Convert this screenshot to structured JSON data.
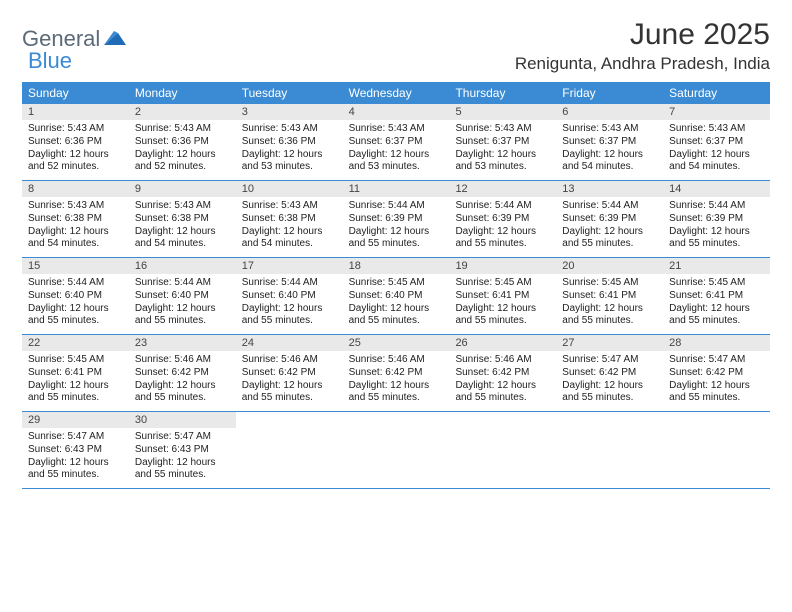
{
  "logo": {
    "text1": "General",
    "text2": "Blue"
  },
  "title": "June 2025",
  "location": "Renigunta, Andhra Pradesh, India",
  "dayHeaders": [
    "Sunday",
    "Monday",
    "Tuesday",
    "Wednesday",
    "Thursday",
    "Friday",
    "Saturday"
  ],
  "colors": {
    "headerBar": "#3b8bd4",
    "dayNumBg": "#e9e9e9",
    "weekBorder": "#3b8bd4",
    "logoGray": "#5c6a78",
    "logoBlue": "#3b8bd4",
    "text": "#222222",
    "background": "#ffffff"
  },
  "typography": {
    "titleSize": 30,
    "locationSize": 17,
    "dayHeaderSize": 12,
    "dayNumSize": 11,
    "bodySize": 10
  },
  "layout": {
    "columns": 7,
    "rows": 5,
    "cellMinHeight": 76
  },
  "weeks": [
    [
      {
        "n": "1",
        "sr": "Sunrise: 5:43 AM",
        "ss": "Sunset: 6:36 PM",
        "dl": "Daylight: 12 hours and 52 minutes."
      },
      {
        "n": "2",
        "sr": "Sunrise: 5:43 AM",
        "ss": "Sunset: 6:36 PM",
        "dl": "Daylight: 12 hours and 52 minutes."
      },
      {
        "n": "3",
        "sr": "Sunrise: 5:43 AM",
        "ss": "Sunset: 6:36 PM",
        "dl": "Daylight: 12 hours and 53 minutes."
      },
      {
        "n": "4",
        "sr": "Sunrise: 5:43 AM",
        "ss": "Sunset: 6:37 PM",
        "dl": "Daylight: 12 hours and 53 minutes."
      },
      {
        "n": "5",
        "sr": "Sunrise: 5:43 AM",
        "ss": "Sunset: 6:37 PM",
        "dl": "Daylight: 12 hours and 53 minutes."
      },
      {
        "n": "6",
        "sr": "Sunrise: 5:43 AM",
        "ss": "Sunset: 6:37 PM",
        "dl": "Daylight: 12 hours and 54 minutes."
      },
      {
        "n": "7",
        "sr": "Sunrise: 5:43 AM",
        "ss": "Sunset: 6:37 PM",
        "dl": "Daylight: 12 hours and 54 minutes."
      }
    ],
    [
      {
        "n": "8",
        "sr": "Sunrise: 5:43 AM",
        "ss": "Sunset: 6:38 PM",
        "dl": "Daylight: 12 hours and 54 minutes."
      },
      {
        "n": "9",
        "sr": "Sunrise: 5:43 AM",
        "ss": "Sunset: 6:38 PM",
        "dl": "Daylight: 12 hours and 54 minutes."
      },
      {
        "n": "10",
        "sr": "Sunrise: 5:43 AM",
        "ss": "Sunset: 6:38 PM",
        "dl": "Daylight: 12 hours and 54 minutes."
      },
      {
        "n": "11",
        "sr": "Sunrise: 5:44 AM",
        "ss": "Sunset: 6:39 PM",
        "dl": "Daylight: 12 hours and 55 minutes."
      },
      {
        "n": "12",
        "sr": "Sunrise: 5:44 AM",
        "ss": "Sunset: 6:39 PM",
        "dl": "Daylight: 12 hours and 55 minutes."
      },
      {
        "n": "13",
        "sr": "Sunrise: 5:44 AM",
        "ss": "Sunset: 6:39 PM",
        "dl": "Daylight: 12 hours and 55 minutes."
      },
      {
        "n": "14",
        "sr": "Sunrise: 5:44 AM",
        "ss": "Sunset: 6:39 PM",
        "dl": "Daylight: 12 hours and 55 minutes."
      }
    ],
    [
      {
        "n": "15",
        "sr": "Sunrise: 5:44 AM",
        "ss": "Sunset: 6:40 PM",
        "dl": "Daylight: 12 hours and 55 minutes."
      },
      {
        "n": "16",
        "sr": "Sunrise: 5:44 AM",
        "ss": "Sunset: 6:40 PM",
        "dl": "Daylight: 12 hours and 55 minutes."
      },
      {
        "n": "17",
        "sr": "Sunrise: 5:44 AM",
        "ss": "Sunset: 6:40 PM",
        "dl": "Daylight: 12 hours and 55 minutes."
      },
      {
        "n": "18",
        "sr": "Sunrise: 5:45 AM",
        "ss": "Sunset: 6:40 PM",
        "dl": "Daylight: 12 hours and 55 minutes."
      },
      {
        "n": "19",
        "sr": "Sunrise: 5:45 AM",
        "ss": "Sunset: 6:41 PM",
        "dl": "Daylight: 12 hours and 55 minutes."
      },
      {
        "n": "20",
        "sr": "Sunrise: 5:45 AM",
        "ss": "Sunset: 6:41 PM",
        "dl": "Daylight: 12 hours and 55 minutes."
      },
      {
        "n": "21",
        "sr": "Sunrise: 5:45 AM",
        "ss": "Sunset: 6:41 PM",
        "dl": "Daylight: 12 hours and 55 minutes."
      }
    ],
    [
      {
        "n": "22",
        "sr": "Sunrise: 5:45 AM",
        "ss": "Sunset: 6:41 PM",
        "dl": "Daylight: 12 hours and 55 minutes."
      },
      {
        "n": "23",
        "sr": "Sunrise: 5:46 AM",
        "ss": "Sunset: 6:42 PM",
        "dl": "Daylight: 12 hours and 55 minutes."
      },
      {
        "n": "24",
        "sr": "Sunrise: 5:46 AM",
        "ss": "Sunset: 6:42 PM",
        "dl": "Daylight: 12 hours and 55 minutes."
      },
      {
        "n": "25",
        "sr": "Sunrise: 5:46 AM",
        "ss": "Sunset: 6:42 PM",
        "dl": "Daylight: 12 hours and 55 minutes."
      },
      {
        "n": "26",
        "sr": "Sunrise: 5:46 AM",
        "ss": "Sunset: 6:42 PM",
        "dl": "Daylight: 12 hours and 55 minutes."
      },
      {
        "n": "27",
        "sr": "Sunrise: 5:47 AM",
        "ss": "Sunset: 6:42 PM",
        "dl": "Daylight: 12 hours and 55 minutes."
      },
      {
        "n": "28",
        "sr": "Sunrise: 5:47 AM",
        "ss": "Sunset: 6:42 PM",
        "dl": "Daylight: 12 hours and 55 minutes."
      }
    ],
    [
      {
        "n": "29",
        "sr": "Sunrise: 5:47 AM",
        "ss": "Sunset: 6:43 PM",
        "dl": "Daylight: 12 hours and 55 minutes."
      },
      {
        "n": "30",
        "sr": "Sunrise: 5:47 AM",
        "ss": "Sunset: 6:43 PM",
        "dl": "Daylight: 12 hours and 55 minutes."
      },
      {
        "empty": true
      },
      {
        "empty": true
      },
      {
        "empty": true
      },
      {
        "empty": true
      },
      {
        "empty": true
      }
    ]
  ]
}
